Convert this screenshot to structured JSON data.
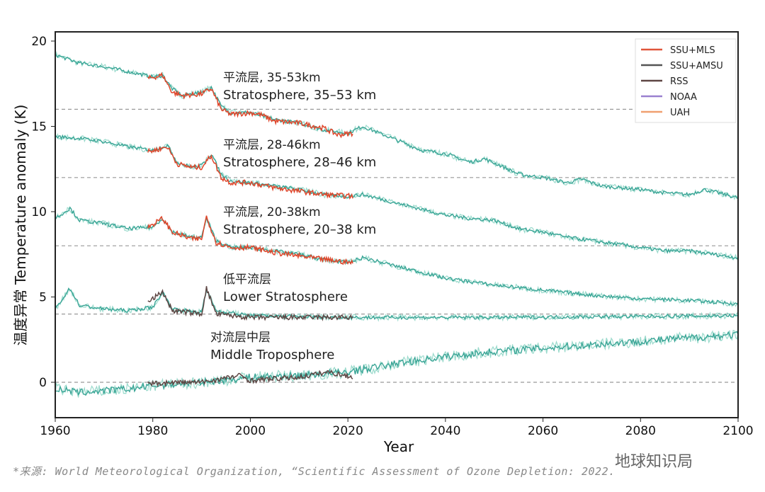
{
  "chart_data": {
    "type": "line",
    "xlabel": "Year",
    "ylabel": "温度异常 Temperature anomaly (K)",
    "xlim": [
      1960,
      2100
    ],
    "ylim": [
      -2,
      20.6
    ],
    "x_ticks": [
      "1960",
      "1980",
      "2000",
      "2020",
      "2040",
      "2060",
      "2080",
      "2100"
    ],
    "y_ticks": [
      "0",
      "5",
      "10",
      "15",
      "20"
    ],
    "reference_lines": [
      16,
      12,
      8,
      4,
      0
    ],
    "legend": {
      "position": "top-right",
      "entries": [
        {
          "name": "SSU+MLS",
          "color": "#e0553a"
        },
        {
          "name": "SSU+AMSU",
          "color": "#555555"
        },
        {
          "name": "RSS",
          "color": "#5e4644"
        },
        {
          "name": "NOAA",
          "color": "#9a80d0"
        },
        {
          "name": "UAH",
          "color": "#f0a070"
        }
      ]
    },
    "model_color": "#3aa596",
    "panels": [
      {
        "label_cn": "平流层, 35-53km",
        "label_en": "Stratosphere, 35–53 km",
        "model": {
          "x": [
            1960,
            1965,
            1970,
            1975,
            1980,
            1982,
            1984,
            1986,
            1990,
            1992,
            1994,
            1996,
            2000,
            2005,
            2010,
            2015,
            2020,
            2023,
            2030,
            2035,
            2040,
            2045,
            2048,
            2052,
            2055,
            2060,
            2065,
            2068,
            2072,
            2080,
            2085,
            2090,
            2093,
            2096,
            2100
          ],
          "y": [
            19.2,
            18.7,
            18.5,
            18.2,
            17.9,
            18.0,
            17.2,
            16.8,
            17.0,
            17.3,
            16.2,
            15.8,
            15.8,
            15.4,
            15.2,
            14.8,
            14.6,
            15.0,
            14.2,
            13.6,
            13.4,
            12.9,
            13.1,
            12.6,
            12.2,
            12.0,
            11.7,
            11.9,
            11.5,
            11.3,
            11.1,
            11.0,
            11.3,
            11.1,
            10.8
          ]
        },
        "observed": {
          "name": "SSU+MLS",
          "x": [
            1979,
            1982,
            1984,
            1986,
            1990,
            1992,
            1994,
            1996,
            2000,
            2002,
            2005,
            2010,
            2015,
            2018,
            2021
          ],
          "y": [
            17.8,
            18.0,
            17.0,
            16.8,
            16.9,
            17.2,
            16.0,
            15.7,
            15.8,
            15.7,
            15.3,
            15.2,
            14.9,
            14.5,
            14.6
          ]
        }
      },
      {
        "label_cn": "平流层, 28-46km",
        "label_en": "Stratosphere, 28–46 km",
        "model": {
          "x": [
            1960,
            1965,
            1970,
            1975,
            1980,
            1983,
            1985,
            1988,
            1990,
            1992,
            1994,
            1996,
            2000,
            2005,
            2010,
            2015,
            2020,
            2023,
            2030,
            2040,
            2045,
            2050,
            2055,
            2060,
            2065,
            2070,
            2080,
            2085,
            2090,
            2095,
            2100
          ],
          "y": [
            14.4,
            14.3,
            14.1,
            13.8,
            13.6,
            13.9,
            12.9,
            12.6,
            12.7,
            13.4,
            12.2,
            11.8,
            11.7,
            11.5,
            11.3,
            11.0,
            10.9,
            11.0,
            10.5,
            9.8,
            9.6,
            9.5,
            9.0,
            8.8,
            8.5,
            8.3,
            7.9,
            7.7,
            7.7,
            7.5,
            7.3
          ]
        },
        "observed": {
          "name": "SSU+MLS",
          "x": [
            1979,
            1983,
            1985,
            1988,
            1990,
            1992,
            1994,
            1996,
            2000,
            2005,
            2010,
            2015,
            2021
          ],
          "y": [
            13.5,
            13.8,
            12.8,
            12.6,
            12.6,
            13.3,
            12.0,
            11.7,
            11.7,
            11.4,
            11.2,
            11.0,
            10.9
          ]
        }
      },
      {
        "label_cn": "平流层, 20-38km",
        "label_en": "Stratosphere, 20–38 km",
        "model": {
          "x": [
            1960,
            1963,
            1965,
            1970,
            1975,
            1980,
            1982,
            1984,
            1988,
            1990,
            1991,
            1993,
            1996,
            2000,
            2005,
            2010,
            2015,
            2020,
            2023,
            2030,
            2040,
            2050,
            2060,
            2070,
            2080,
            2090,
            2100
          ],
          "y": [
            9.6,
            10.2,
            9.5,
            9.3,
            9.0,
            9.1,
            9.6,
            8.8,
            8.5,
            8.5,
            9.6,
            8.3,
            7.9,
            7.9,
            7.7,
            7.5,
            7.2,
            7.0,
            7.3,
            6.8,
            6.1,
            5.7,
            5.4,
            5.1,
            4.9,
            4.8,
            4.6
          ]
        },
        "observed": {
          "name": "SSU+MLS",
          "x": [
            1979,
            1982,
            1984,
            1988,
            1990,
            1991,
            1993,
            1996,
            2000,
            2005,
            2010,
            2015,
            2021
          ],
          "y": [
            9.1,
            9.6,
            8.8,
            8.4,
            8.4,
            9.7,
            8.2,
            7.9,
            7.9,
            7.6,
            7.4,
            7.2,
            7.0
          ]
        }
      },
      {
        "label_cn": "低平流层",
        "label_en": "Lower Stratosphere",
        "model": {
          "x": [
            1960,
            1963,
            1965,
            1970,
            1975,
            1980,
            1982,
            1984,
            1990,
            1991,
            1993,
            2000,
            2020,
            2050,
            2100
          ],
          "y": [
            4.3,
            5.5,
            4.5,
            4.3,
            4.2,
            4.4,
            5.3,
            4.3,
            4.1,
            5.4,
            4.2,
            3.9,
            3.8,
            3.8,
            3.9
          ]
        },
        "observed": {
          "name": "RSS",
          "x": [
            1979,
            1982,
            1984,
            1990,
            1991,
            1993,
            2000,
            2010,
            2021
          ],
          "y": [
            4.7,
            5.3,
            4.2,
            4.0,
            5.5,
            4.0,
            3.8,
            3.8,
            3.8
          ]
        }
      },
      {
        "label_cn": "对流层中层",
        "label_en": "Middle Troposphere",
        "model": {
          "x": [
            1960,
            1965,
            1970,
            1975,
            1980,
            1990,
            2000,
            2010,
            2020,
            2030,
            2040,
            2050,
            2060,
            2070,
            2080,
            2090,
            2100
          ],
          "y": [
            -0.4,
            -0.6,
            -0.5,
            -0.4,
            -0.2,
            0.0,
            0.3,
            0.4,
            0.6,
            1.1,
            1.5,
            1.8,
            2.0,
            2.2,
            2.4,
            2.6,
            2.8
          ]
        },
        "observed": {
          "name": "RSS",
          "x": [
            1979,
            1985,
            1990,
            1998,
            2000,
            2010,
            2016,
            2021
          ],
          "y": [
            -0.1,
            0.0,
            0.0,
            0.4,
            0.1,
            0.3,
            0.6,
            0.3
          ]
        }
      }
    ]
  },
  "source": "*来源: World Meteorological Organization, “Scientific Assessment of Ozone Depletion: 2022.",
  "watermark": "地球知识局"
}
